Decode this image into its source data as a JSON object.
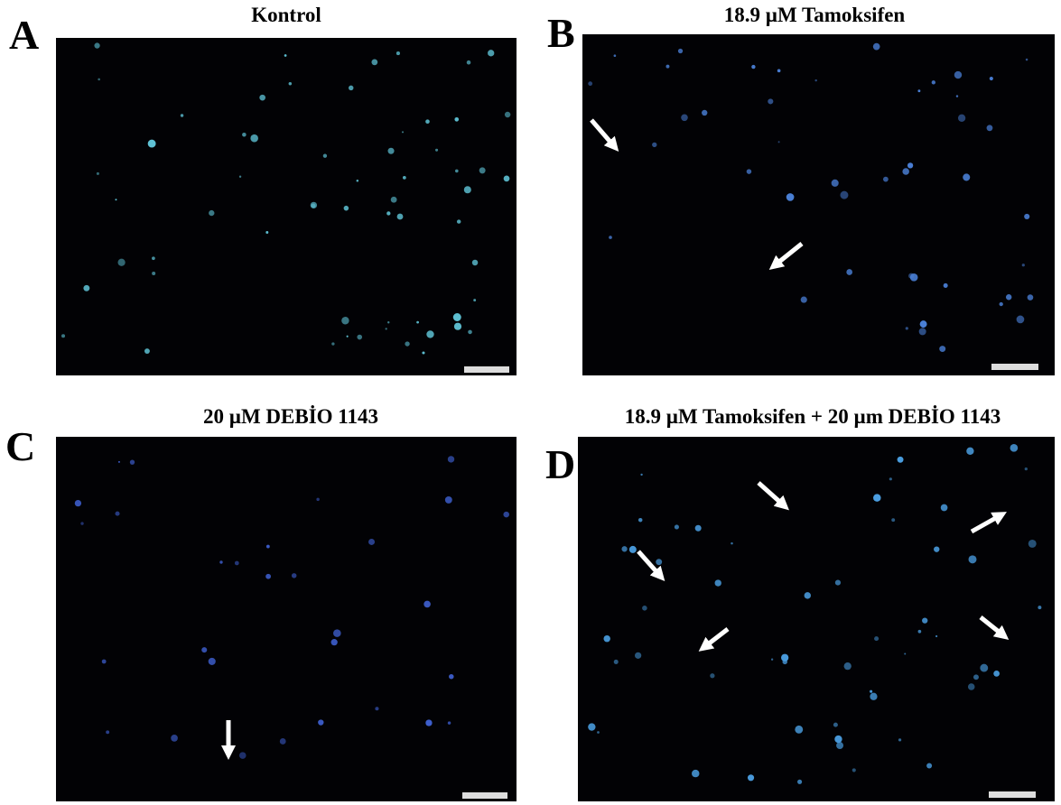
{
  "panels": [
    {
      "letter": "A",
      "title": "Kontrol"
    },
    {
      "letter": "B",
      "title": "18.9 µM Tamoksifen"
    },
    {
      "letter": "C",
      "title": "20 µM DEBİO 1143"
    },
    {
      "letter": "D",
      "title": "18.9 µM Tamoksifen + 20 µm DEBİO 1143"
    }
  ]
}
